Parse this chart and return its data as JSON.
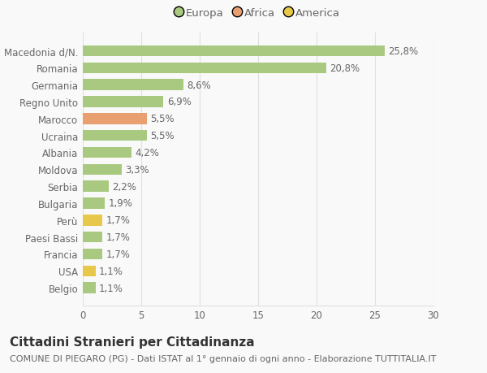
{
  "categories": [
    "Belgio",
    "USA",
    "Francia",
    "Paesi Bassi",
    "Perù",
    "Bulgaria",
    "Serbia",
    "Moldova",
    "Albania",
    "Ucraina",
    "Marocco",
    "Regno Unito",
    "Germania",
    "Romania",
    "Macedonia d/N."
  ],
  "values": [
    1.1,
    1.1,
    1.7,
    1.7,
    1.7,
    1.9,
    2.2,
    3.3,
    4.2,
    5.5,
    5.5,
    6.9,
    8.6,
    20.8,
    25.8
  ],
  "colors": [
    "#a8c97f",
    "#e8c84a",
    "#a8c97f",
    "#a8c97f",
    "#e8c84a",
    "#a8c97f",
    "#a8c97f",
    "#a8c97f",
    "#a8c97f",
    "#a8c97f",
    "#e8a070",
    "#a8c97f",
    "#a8c97f",
    "#a8c97f",
    "#a8c97f"
  ],
  "labels": [
    "1,1%",
    "1,1%",
    "1,7%",
    "1,7%",
    "1,7%",
    "1,9%",
    "2,2%",
    "3,3%",
    "4,2%",
    "5,5%",
    "5,5%",
    "6,9%",
    "8,6%",
    "20,8%",
    "25,8%"
  ],
  "legend_labels": [
    "Europa",
    "Africa",
    "America"
  ],
  "legend_colors": [
    "#a8c97f",
    "#e8a070",
    "#e8c84a"
  ],
  "title": "Cittadini Stranieri per Cittadinanza",
  "subtitle": "COMUNE DI PIEGARO (PG) - Dati ISTAT al 1° gennaio di ogni anno - Elaborazione TUTTITALIA.IT",
  "xlim": [
    0,
    30
  ],
  "xticks": [
    0,
    5,
    10,
    15,
    20,
    25,
    30
  ],
  "background_color": "#f9f9f9",
  "grid_color": "#e0e0e0",
  "bar_height": 0.65,
  "title_fontsize": 11,
  "subtitle_fontsize": 8,
  "label_fontsize": 8.5,
  "tick_fontsize": 8.5,
  "legend_fontsize": 9.5
}
